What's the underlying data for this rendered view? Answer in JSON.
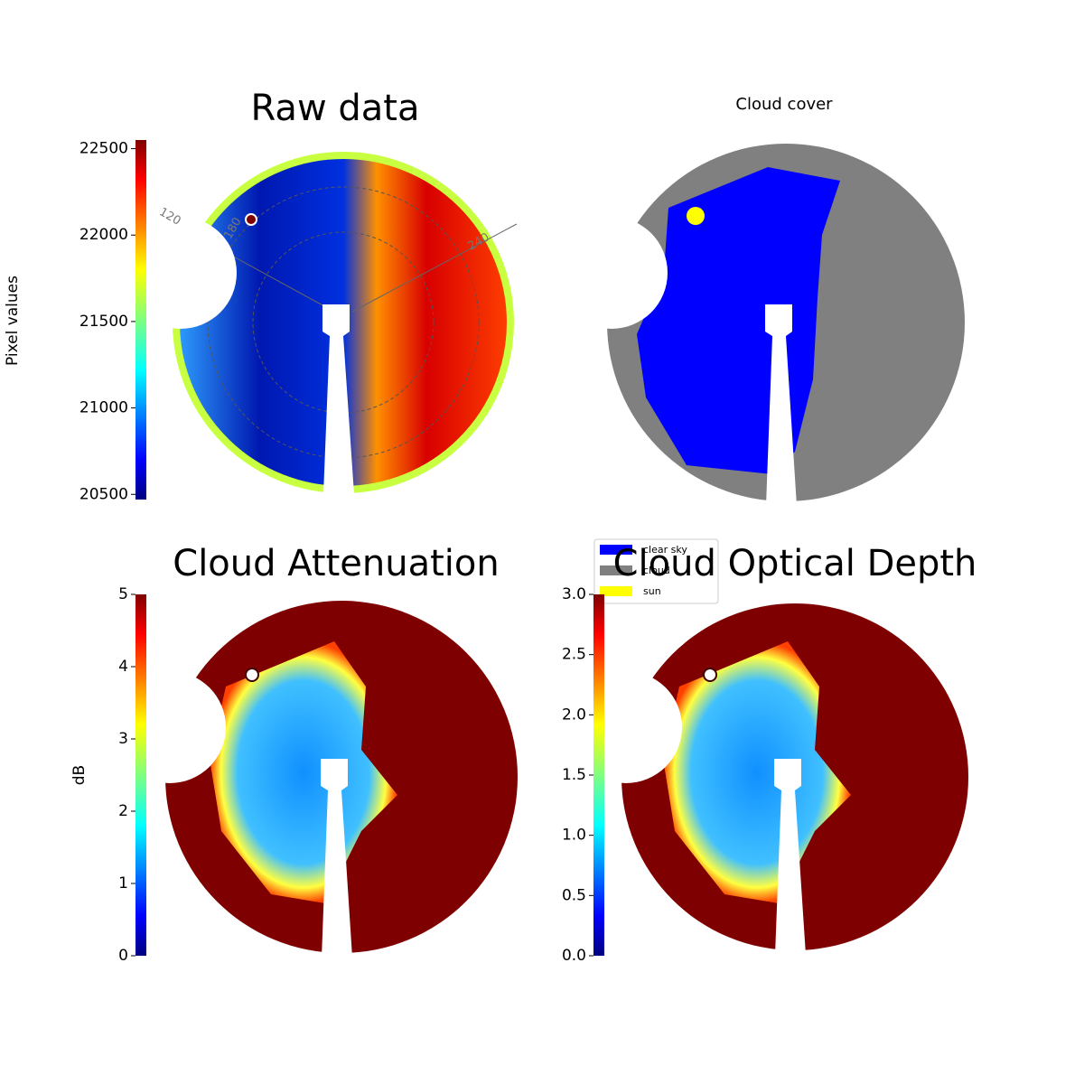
{
  "chart_data": [
    {
      "type": "image",
      "title": "Raw data",
      "colormap": "jet",
      "clim": [
        20470,
        22550
      ],
      "cticks": [
        20500,
        21000,
        21500,
        22000,
        22500
      ],
      "colorbar_label": "Pixel values",
      "annotations": [
        "120",
        "180",
        "240"
      ]
    },
    {
      "type": "image",
      "title": "Cloud cover",
      "series": [
        {
          "name": "clear sky",
          "color": "#0000ff"
        },
        {
          "name": "cloud",
          "color": "#808080"
        },
        {
          "name": "sun",
          "color": "#ffff00"
        }
      ]
    },
    {
      "type": "image",
      "title": "Cloud Attenuation",
      "colormap": "jet",
      "clim": [
        0,
        5
      ],
      "cticks": [
        0,
        1,
        2,
        3,
        4,
        5
      ],
      "colorbar_label": "dB"
    },
    {
      "type": "image",
      "title": "Cloud Optical Depth",
      "colormap": "jet",
      "clim": [
        0,
        3
      ],
      "cticks": [
        {
          "value": 0,
          "label": "0.0"
        },
        {
          "value": 0.5,
          "label": "0.5"
        },
        {
          "value": 1,
          "label": "1.0"
        },
        {
          "value": 1.5,
          "label": "1.5"
        },
        {
          "value": 2,
          "label": "2.0"
        },
        {
          "value": 2.5,
          "label": "2.5"
        },
        {
          "value": 3,
          "label": "3.0"
        }
      ]
    }
  ]
}
